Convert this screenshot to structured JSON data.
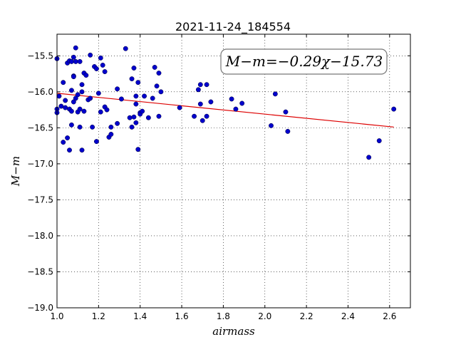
{
  "chart_data": {
    "type": "scatter",
    "title": "2021-11-24_184554",
    "xlabel": "airmass",
    "ylabel": "M−m",
    "xlim": [
      1.0,
      2.7
    ],
    "ylim": [
      -19.0,
      -15.2
    ],
    "xticks": [
      1.0,
      1.2,
      1.4,
      1.6,
      1.8,
      2.0,
      2.2,
      2.4,
      2.6
    ],
    "xtick_labels": [
      "1.0",
      "1.2",
      "1.4",
      "1.6",
      "1.8",
      "2.0",
      "2.2",
      "2.4",
      "2.6"
    ],
    "yticks": [
      -15.5,
      -16.0,
      -16.5,
      -17.0,
      -17.5,
      -18.0,
      -18.5,
      -19.0
    ],
    "ytick_labels": [
      "−15.5",
      "−16.0",
      "−16.5",
      "−17.0",
      "−17.5",
      "−18.0",
      "−18.5",
      "−19.0"
    ],
    "grid": true,
    "annotation": "M−m=−0.29χ−15.73",
    "points_color": "#0000cc",
    "fit_color": "#dd0000",
    "fit": {
      "slope": -0.29,
      "intercept": -15.73,
      "x_range": [
        1.0,
        2.62
      ]
    },
    "x": [
      1.0,
      1.0,
      1.0,
      1.01,
      1.02,
      1.03,
      1.03,
      1.04,
      1.04,
      1.05,
      1.05,
      1.06,
      1.06,
      1.06,
      1.07,
      1.07,
      1.07,
      1.07,
      1.08,
      1.08,
      1.08,
      1.08,
      1.09,
      1.09,
      1.09,
      1.1,
      1.1,
      1.11,
      1.11,
      1.11,
      1.12,
      1.12,
      1.12,
      1.13,
      1.13,
      1.14,
      1.15,
      1.16,
      1.16,
      1.17,
      1.18,
      1.19,
      1.19,
      1.2,
      1.21,
      1.21,
      1.22,
      1.23,
      1.23,
      1.24,
      1.25,
      1.26,
      1.26,
      1.29,
      1.29,
      1.31,
      1.33,
      1.35,
      1.36,
      1.36,
      1.37,
      1.37,
      1.38,
      1.38,
      1.38,
      1.39,
      1.39,
      1.4,
      1.4,
      1.41,
      1.42,
      1.44,
      1.46,
      1.47,
      1.48,
      1.49,
      1.49,
      1.5,
      1.59,
      1.66,
      1.68,
      1.69,
      1.69,
      1.7,
      1.72,
      1.72,
      1.74,
      1.84,
      1.86,
      1.89,
      2.03,
      2.05,
      2.1,
      2.11,
      2.5,
      2.55,
      2.62
    ],
    "y": [
      -15.54,
      -16.24,
      -16.29,
      -16.06,
      -16.2,
      -16.7,
      -15.87,
      -16.22,
      -16.12,
      -15.6,
      -16.64,
      -16.24,
      -16.81,
      -15.57,
      -15.58,
      -16.46,
      -16.27,
      -15.98,
      -15.52,
      -15.78,
      -16.14,
      -15.79,
      -16.09,
      -15.39,
      -15.58,
      -16.28,
      -16.04,
      -15.58,
      -16.49,
      -16.24,
      -15.9,
      -16.81,
      -16.0,
      -15.74,
      -16.27,
      -15.77,
      -16.11,
      -15.49,
      -16.09,
      -16.49,
      -15.65,
      -16.69,
      -15.68,
      -16.02,
      -15.53,
      -16.28,
      -15.63,
      -15.72,
      -16.21,
      -16.25,
      -16.63,
      -16.59,
      -16.49,
      -16.44,
      -15.96,
      -16.1,
      -15.4,
      -16.36,
      -16.49,
      -15.82,
      -15.67,
      -16.35,
      -16.43,
      -16.06,
      -16.17,
      -16.8,
      -15.87,
      -16.29,
      -16.31,
      -16.27,
      -16.06,
      -16.36,
      -16.09,
      -15.66,
      -15.92,
      -16.34,
      -15.74,
      -16.0,
      -16.22,
      -16.34,
      -15.97,
      -15.9,
      -16.17,
      -16.4,
      -15.9,
      -16.34,
      -16.14,
      -16.1,
      -16.24,
      -16.16,
      -16.47,
      -16.03,
      -16.28,
      -16.55,
      -16.91,
      -16.68,
      -16.24
    ]
  }
}
